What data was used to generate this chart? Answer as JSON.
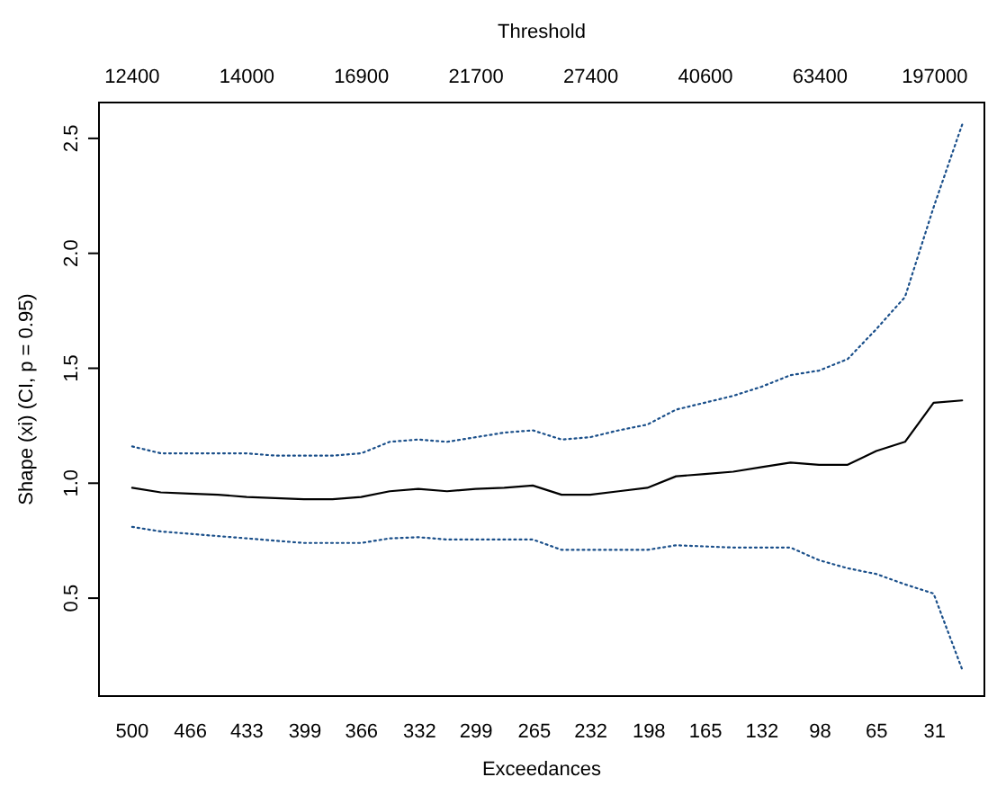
{
  "chart_data": {
    "type": "line",
    "xlabel": "Exceedances",
    "ylabel": "Shape (xi) (CI, p = 0.95)",
    "x2label": "Threshold",
    "x": [
      500,
      483.3,
      466.6,
      449.8,
      433.1,
      416.4,
      399.7,
      382.9,
      366.2,
      349.5,
      332.8,
      316.0,
      299.3,
      282.6,
      265.9,
      249.1,
      232.4,
      215.7,
      199.0,
      182.2,
      165.5,
      148.8,
      132.1,
      115.3,
      98.6,
      81.9,
      65.2,
      48.4,
      31.7,
      15.0
    ],
    "series": [
      {
        "color": "#000000",
        "line_style": "solid",
        "values": [
          0.98,
          0.96,
          0.955,
          0.95,
          0.94,
          0.935,
          0.93,
          0.93,
          0.94,
          0.965,
          0.975,
          0.965,
          0.975,
          0.98,
          0.99,
          0.95,
          0.95,
          0.965,
          0.98,
          1.03,
          1.04,
          1.05,
          1.07,
          1.09,
          1.08,
          1.08,
          1.14,
          1.18,
          1.35,
          1.36
        ]
      },
      {
        "color": "#1a4f8a",
        "line_style": "dotted",
        "values": [
          1.16,
          1.13,
          1.13,
          1.13,
          1.13,
          1.12,
          1.12,
          1.12,
          1.13,
          1.18,
          1.19,
          1.18,
          1.2,
          1.22,
          1.23,
          1.19,
          1.2,
          1.23,
          1.255,
          1.32,
          1.35,
          1.38,
          1.42,
          1.47,
          1.49,
          1.54,
          1.67,
          1.81,
          2.2,
          2.56
        ]
      },
      {
        "color": "#1a4f8a",
        "line_style": "dotted",
        "values": [
          0.81,
          0.79,
          0.78,
          0.77,
          0.76,
          0.75,
          0.74,
          0.74,
          0.74,
          0.76,
          0.765,
          0.755,
          0.755,
          0.755,
          0.755,
          0.71,
          0.71,
          0.71,
          0.71,
          0.73,
          0.725,
          0.72,
          0.72,
          0.72,
          0.665,
          0.63,
          0.605,
          0.56,
          0.52,
          0.19
        ]
      }
    ],
    "xlim": [
      519.4,
      2
    ],
    "xticks": [
      500,
      466,
      433,
      399,
      366,
      332,
      299,
      265,
      232,
      198,
      165,
      132,
      98,
      65,
      31
    ],
    "annotations": [
      "12400",
      "14000",
      "16900",
      "21700",
      "27400",
      "40600",
      "63400",
      "197000"
    ],
    "ylim": [
      0.074,
      2.656
    ],
    "yticks": [
      {
        "value": 0.5,
        "label": "0.5"
      },
      {
        "value": 1,
        "label": "1.0"
      },
      {
        "value": 1.5,
        "label": "1.5"
      },
      {
        "value": 2,
        "label": "2.0"
      },
      {
        "value": 2.5,
        "label": "2.5"
      }
    ]
  }
}
